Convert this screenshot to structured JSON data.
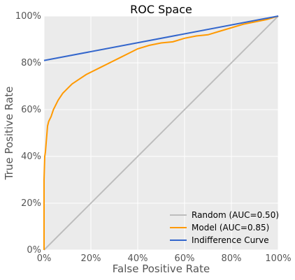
{
  "chart_data": {
    "type": "line",
    "title": "ROC Space",
    "xlabel": "False Positive Rate",
    "ylabel": "True Positive Rate",
    "xlim": [
      0,
      1
    ],
    "ylim": [
      0,
      1
    ],
    "x_ticks": [
      "0%",
      "20%",
      "40%",
      "60%",
      "80%",
      "100%"
    ],
    "y_ticks": [
      "0%",
      "20%",
      "40%",
      "60%",
      "80%",
      "100%"
    ],
    "grid": true,
    "legend_position": "bottom-right",
    "series": [
      {
        "name": "Random (AUC=0.50)",
        "color": "#bdbdbd",
        "x": [
          0,
          1
        ],
        "y": [
          0,
          1
        ]
      },
      {
        "name": "Model (AUC=0.85)",
        "color": "#ff9900",
        "x": [
          0,
          0,
          0.003,
          0.006,
          0.01,
          0.015,
          0.02,
          0.03,
          0.04,
          0.05,
          0.06,
          0.08,
          0.1,
          0.12,
          0.15,
          0.18,
          0.2,
          0.24,
          0.28,
          0.32,
          0.36,
          0.4,
          0.45,
          0.5,
          0.55,
          0.6,
          0.65,
          0.7,
          0.75,
          0.8,
          0.85,
          0.9,
          0.95,
          1.0
        ],
        "y": [
          0,
          0.3,
          0.4,
          0.42,
          0.47,
          0.53,
          0.55,
          0.57,
          0.6,
          0.62,
          0.64,
          0.67,
          0.69,
          0.71,
          0.73,
          0.75,
          0.76,
          0.78,
          0.8,
          0.82,
          0.84,
          0.86,
          0.875,
          0.885,
          0.89,
          0.905,
          0.915,
          0.92,
          0.935,
          0.95,
          0.965,
          0.975,
          0.985,
          1.0
        ]
      },
      {
        "name": "Indifference Curve",
        "color": "#3366cc",
        "x": [
          0,
          1
        ],
        "y": [
          0.81,
          1.0
        ]
      }
    ]
  }
}
